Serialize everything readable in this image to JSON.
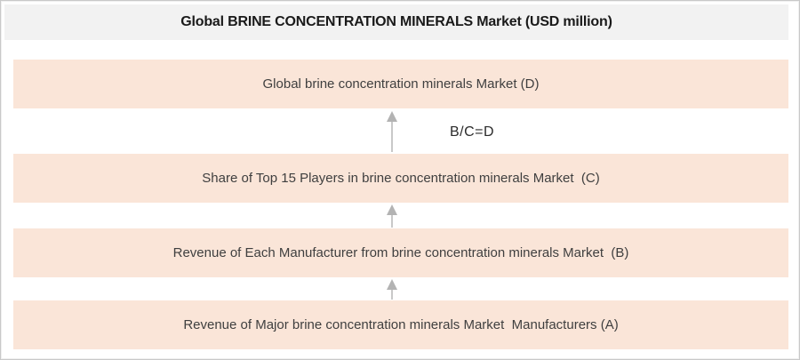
{
  "title": "Global BRINE CONCENTRATION MINERALS Market (USD million)",
  "diagram": {
    "formula_label": "B/C=D",
    "boxes": [
      {
        "label": "Global brine concentration minerals Market (D)"
      },
      {
        "label": "Share of Top 15 Players in brine concentration minerals Market  (C)"
      },
      {
        "label": "Revenue of Each Manufacturer from brine concentration minerals Market  (B)"
      },
      {
        "label": "Revenue of Major brine concentration minerals Market  Manufacturers (A)"
      }
    ],
    "colors": {
      "box_bg": "#fae5d8",
      "title_bg": "#f2f2f2",
      "title_text": "#1a1a1a",
      "box_text": "#3f3f3f",
      "arrow": "#b3b3b3",
      "frame_border": "#c9c9c9"
    }
  }
}
